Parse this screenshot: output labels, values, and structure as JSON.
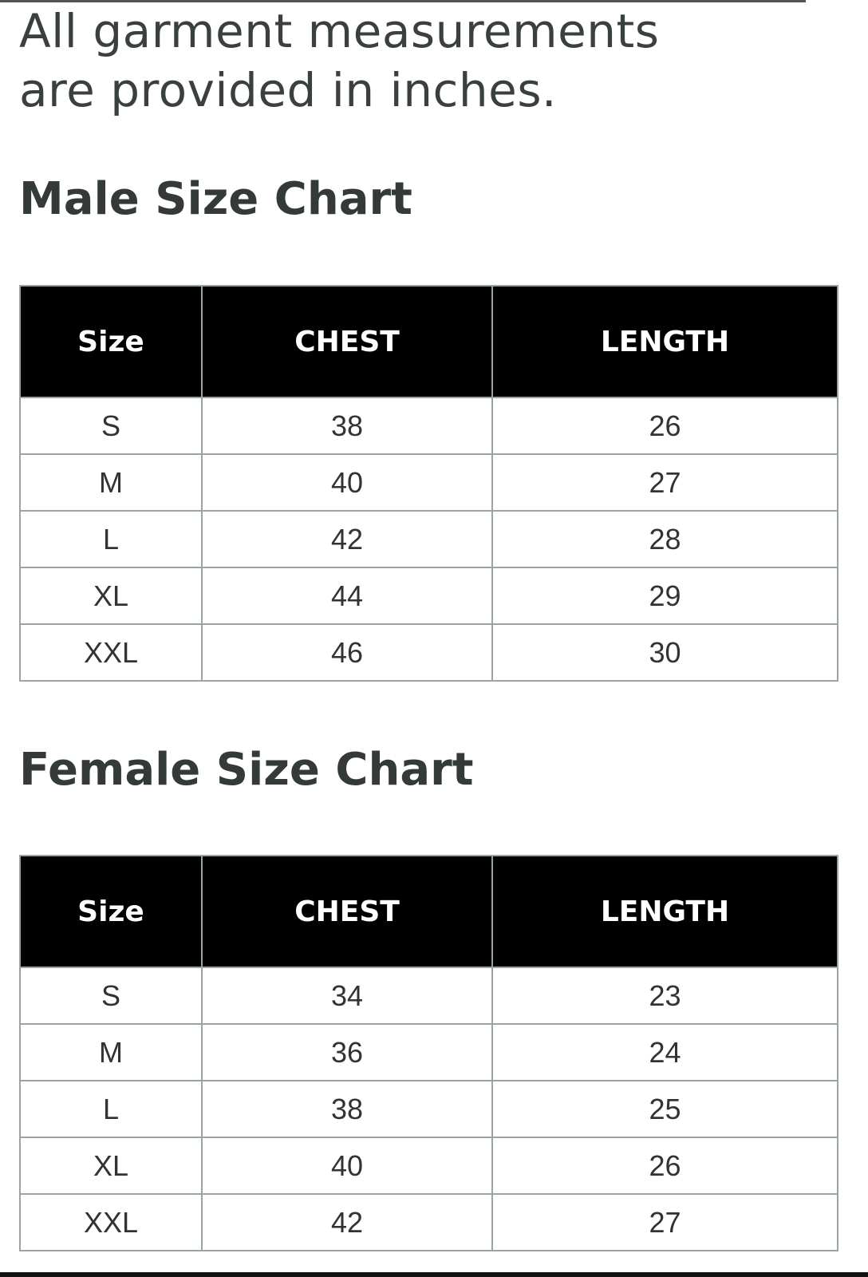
{
  "intro_text": [
    "All garment measurements",
    "are provided in inches."
  ],
  "charts": [
    {
      "title": "Male Size Chart",
      "headers": [
        "Size",
        "CHEST",
        "LENGTH"
      ],
      "rows": [
        [
          "S",
          "38",
          "26"
        ],
        [
          "M",
          "40",
          "27"
        ],
        [
          "L",
          "42",
          "28"
        ],
        [
          "XL",
          "44",
          "29"
        ],
        [
          "XXL",
          "46",
          "30"
        ]
      ]
    },
    {
      "title": "Female Size Chart",
      "headers": [
        "Size",
        "CHEST",
        "LENGTH"
      ],
      "rows": [
        [
          "S",
          "34",
          "23"
        ],
        [
          "M",
          "36",
          "24"
        ],
        [
          "L",
          "38",
          "25"
        ],
        [
          "XL",
          "40",
          "26"
        ],
        [
          "XXL",
          "42",
          "27"
        ]
      ]
    }
  ]
}
